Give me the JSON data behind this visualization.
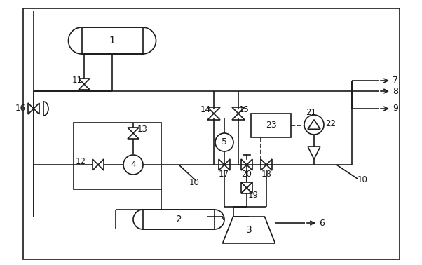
{
  "bg_color": "#ffffff",
  "line_color": "#1a1a1a",
  "figsize": [
    6.02,
    3.78
  ],
  "dpi": 100
}
